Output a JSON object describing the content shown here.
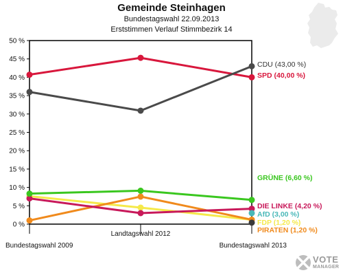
{
  "chart_data": {
    "type": "line",
    "title": "Gemeinde Steinhagen",
    "subtitle": "Bundestagswahl 22.09.2013",
    "subtitle2": "Erststimmen Verlauf Stimmbezirk 14",
    "categories": [
      "Bundestagswahl 2009",
      "Landtagswahl 2012",
      "Bundestagswahl 2013"
    ],
    "ylim": [
      0,
      50
    ],
    "yticks": [
      "0 %",
      "5 %",
      "10 %",
      "15 %",
      "20 %",
      "25 %",
      "30 %",
      "35 %",
      "40 %",
      "45 %",
      "50 %"
    ],
    "grid": false,
    "legend": "right",
    "series": [
      {
        "name": "CDU (43,00 %)",
        "color": "#4a4a4a",
        "values": [
          36.0,
          30.9,
          43.0
        ]
      },
      {
        "name": "SPD (40,00 %)",
        "color": "#d8173c",
        "values": [
          40.7,
          45.3,
          40.0
        ]
      },
      {
        "name": "GRÜNE (6,60 %)",
        "color": "#3ac71f",
        "values": [
          8.3,
          9.1,
          6.6
        ]
      },
      {
        "name": "DIE LINKE (4,20 %)",
        "color": "#c8195a",
        "values": [
          7.0,
          3.0,
          4.2
        ]
      },
      {
        "name": "AfD (3,00 %)",
        "color": "#49b8b8",
        "values": [
          null,
          null,
          3.0
        ]
      },
      {
        "name": "FDP (1,20 %)",
        "color": "#f5e94a",
        "values": [
          7.6,
          4.5,
          1.2
        ]
      },
      {
        "name": "PIRATEN (1,20 %)",
        "color": "#f08a1c",
        "values": [
          1.0,
          7.5,
          1.2
        ]
      },
      {
        "name": "",
        "color": "#3a3a3a",
        "values": [
          null,
          null,
          0.4
        ]
      }
    ]
  },
  "logo": {
    "line1": "VOTE",
    "line2": "MANAGER"
  }
}
